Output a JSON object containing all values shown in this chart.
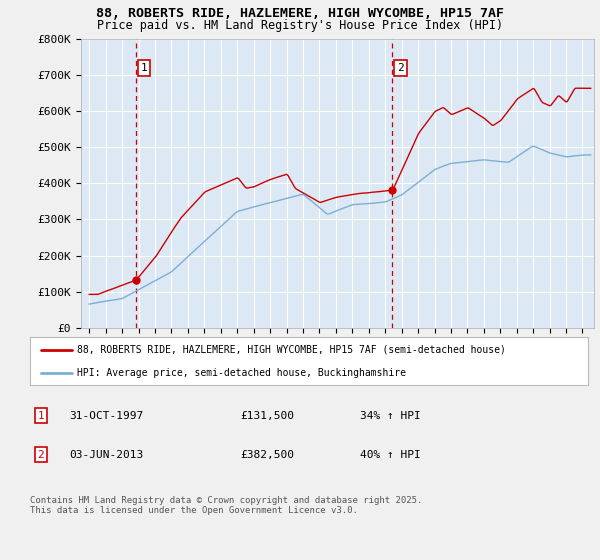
{
  "title_line1": "88, ROBERTS RIDE, HAZLEMERE, HIGH WYCOMBE, HP15 7AF",
  "title_line2": "Price paid vs. HM Land Registry's House Price Index (HPI)",
  "ylim": [
    0,
    800000
  ],
  "yticks": [
    0,
    100000,
    200000,
    300000,
    400000,
    500000,
    600000,
    700000,
    800000
  ],
  "ytick_labels": [
    "£0",
    "£100K",
    "£200K",
    "£300K",
    "£400K",
    "£500K",
    "£600K",
    "£700K",
    "£800K"
  ],
  "red_color": "#cc0000",
  "blue_color": "#7bafd4",
  "background_color": "#f0f0f0",
  "plot_bg_color": "#dce9f5",
  "grid_color": "#ffffff",
  "sale1_year": 1997.83,
  "sale1_price": 131500,
  "sale1_label": "1",
  "sale2_year": 2013.42,
  "sale2_price": 382500,
  "sale2_label": "2",
  "vline1_x": 1997.83,
  "vline2_x": 2013.42,
  "legend_line1": "88, ROBERTS RIDE, HAZLEMERE, HIGH WYCOMBE, HP15 7AF (semi-detached house)",
  "legend_line2": "HPI: Average price, semi-detached house, Buckinghamshire",
  "table_row1": [
    "1",
    "31-OCT-1997",
    "£131,500",
    "34% ↑ HPI"
  ],
  "table_row2": [
    "2",
    "03-JUN-2013",
    "£382,500",
    "40% ↑ HPI"
  ],
  "footnote": "Contains HM Land Registry data © Crown copyright and database right 2025.\nThis data is licensed under the Open Government Licence v3.0.",
  "xmin": 1994.5,
  "xmax": 2025.7
}
